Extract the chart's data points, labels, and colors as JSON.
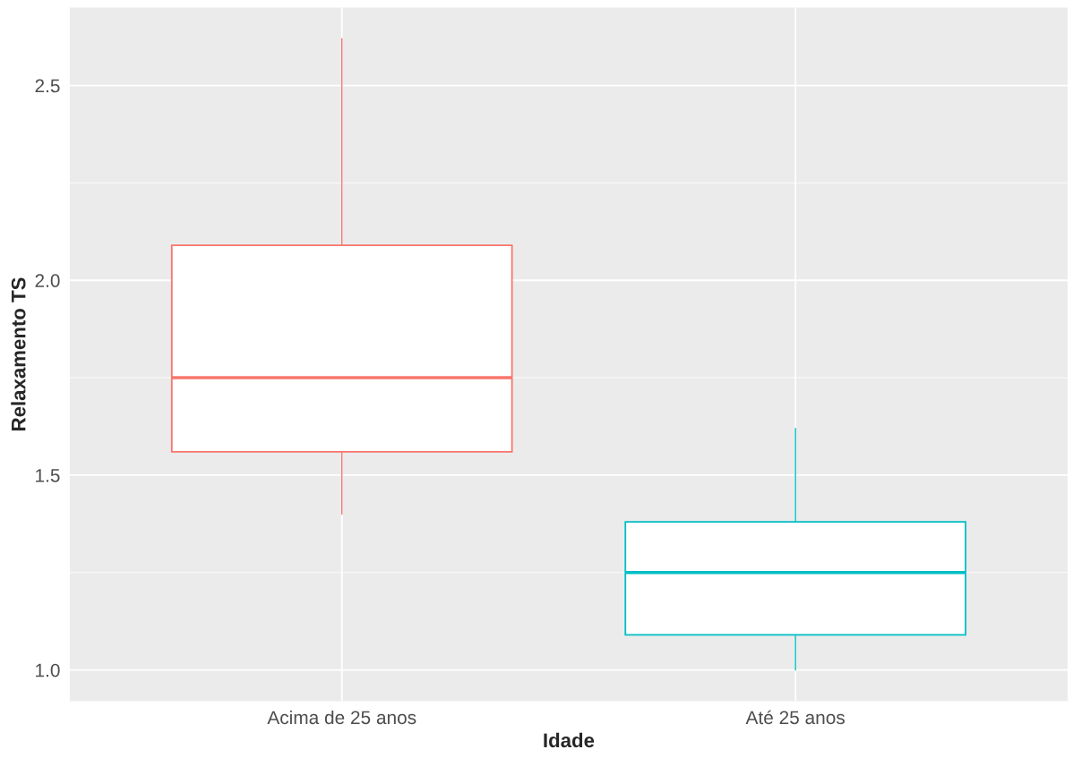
{
  "chart_data": {
    "type": "box",
    "xlabel": "Idade",
    "ylabel": "Relaxamento TS",
    "categories": [
      "Acima de 25 anos",
      "Até 25 anos"
    ],
    "boxes": [
      {
        "low": 1.4,
        "q1": 1.56,
        "median": 1.75,
        "q3": 2.09,
        "high": 2.62
      },
      {
        "low": 1.0,
        "q1": 1.09,
        "median": 1.25,
        "q3": 1.38,
        "high": 1.62
      }
    ],
    "colors": [
      "#f8766d",
      "#00bfc4"
    ],
    "ylim": [
      0.92,
      2.7
    ],
    "yticks": [
      {
        "value": 1.0,
        "label": "1.0"
      },
      {
        "value": 1.25,
        "label": null
      },
      1.5,
      {
        "value": 1.75,
        "label": null
      },
      {
        "value": 2.0,
        "label": "2.0"
      },
      {
        "value": 2.25,
        "label": null
      },
      2.5
    ],
    "grid": true
  }
}
